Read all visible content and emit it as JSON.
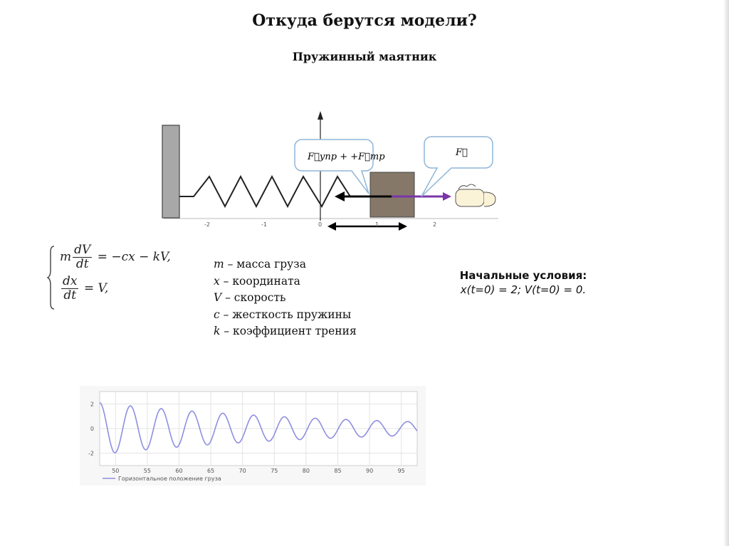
{
  "slide": {
    "title": "Откуда берутся модели?",
    "subtitle": "Пружинный маятник"
  },
  "diagram": {
    "bubble_left": "F⃗упр + +F⃗тр",
    "bubble_right": "F⃗",
    "axis_ticks": [
      "-2",
      "-1",
      "0",
      "1",
      "2"
    ]
  },
  "equations": {
    "eq1_lhs_num": "dV",
    "eq1_lhs_den": "dt",
    "eq1_prefix": "m",
    "eq1_rhs": "= −cx − kV,",
    "eq2_lhs_num": "dx",
    "eq2_lhs_den": "dt",
    "eq2_rhs": "= V,"
  },
  "legend_terms": [
    {
      "sym": "m",
      "text": " – масса груза"
    },
    {
      "sym": "x",
      "text": " – координата"
    },
    {
      "sym": "V",
      "text": " – скорость"
    },
    {
      "sym": "c",
      "text": " – жесткость пружины"
    },
    {
      "sym": "k",
      "text": " – коэффициент трения"
    }
  ],
  "initial_conditions": {
    "heading": "Начальные условия:",
    "values": "x(t=0) = 2;  V(t=0) = 0."
  },
  "chart_data": {
    "type": "line",
    "x_ticks": [
      "50",
      "55",
      "60",
      "65",
      "70",
      "75",
      "80",
      "85",
      "90",
      "95"
    ],
    "y_ticks": [
      "2",
      "0",
      "-2"
    ],
    "xlim": [
      47.5,
      97.5
    ],
    "ylim": [
      -3,
      3
    ],
    "grid": true,
    "legend": "bottom-left",
    "series": [
      {
        "name": "Горизонтальное положение груза",
        "color": "#8f8fe0",
        "model": {
          "x0": 47.5,
          "amplitude0": 2.1,
          "decay_rate": 0.027,
          "period": 4.85
        }
      }
    ]
  },
  "colors": {
    "wall": "#a8a8a8",
    "block": "#857868",
    "force_arrow": "#7a35a8",
    "velocity_arrow": "#000000",
    "curve": "#8f8fe0",
    "bubble_border": "#8fb6d8"
  }
}
